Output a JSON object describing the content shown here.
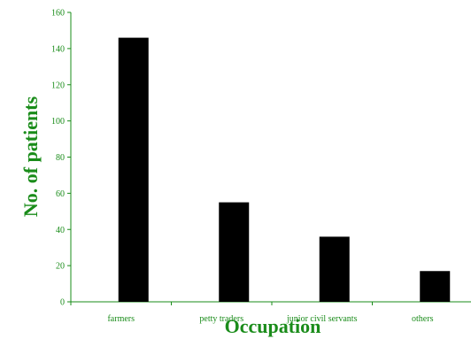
{
  "chart_data": {
    "type": "bar",
    "categories": [
      "farmers",
      "petty traders",
      "junior civil servants",
      "others"
    ],
    "values": [
      146,
      55,
      36,
      17
    ],
    "title": "",
    "xlabel": "Occupation",
    "ylabel": "No. of patients",
    "ylim": [
      0,
      160
    ],
    "yticks": [
      0,
      20,
      40,
      60,
      80,
      100,
      120,
      140,
      160
    ],
    "grid": false,
    "legend": "none",
    "colors": {
      "bars": "#000000",
      "axes": "#1a8c1a",
      "text": "#1a8c1a"
    }
  }
}
